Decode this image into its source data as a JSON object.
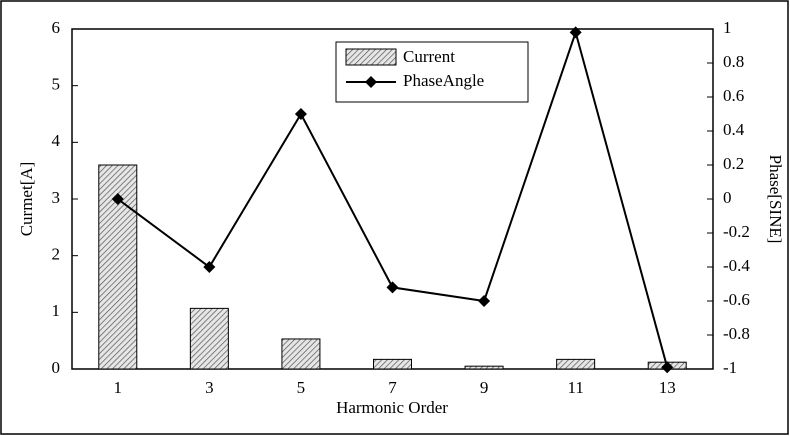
{
  "chart_data": {
    "type": "bar_line",
    "x_label": "Harmonic Order",
    "y_label": "Curmet[A]",
    "y2_label": "Phase[SINE]",
    "categories": [
      "1",
      "3",
      "5",
      "7",
      "9",
      "11",
      "13"
    ],
    "series": [
      {
        "name": "Current",
        "type": "bar",
        "color": "#c8c8c8",
        "values": [
          3.6,
          1.07,
          0.53,
          0.17,
          0.05,
          0.17,
          0.12
        ]
      },
      {
        "name": "PhaseAngle",
        "type": "line",
        "axis": "y2",
        "color": "#000000",
        "values": [
          0,
          -0.4,
          0.5,
          -0.52,
          -0.6,
          0.98,
          -0.99
        ]
      }
    ],
    "ylim": [
      0,
      6
    ],
    "yticks": [
      0,
      1,
      2,
      3,
      4,
      5,
      6
    ],
    "y2lim": [
      -1,
      1
    ],
    "y2ticks": [
      -1,
      -0.8,
      -0.6,
      -0.4,
      -0.2,
      0,
      0.2,
      0.4,
      0.6,
      0.8,
      1
    ],
    "legend": "top-center"
  }
}
